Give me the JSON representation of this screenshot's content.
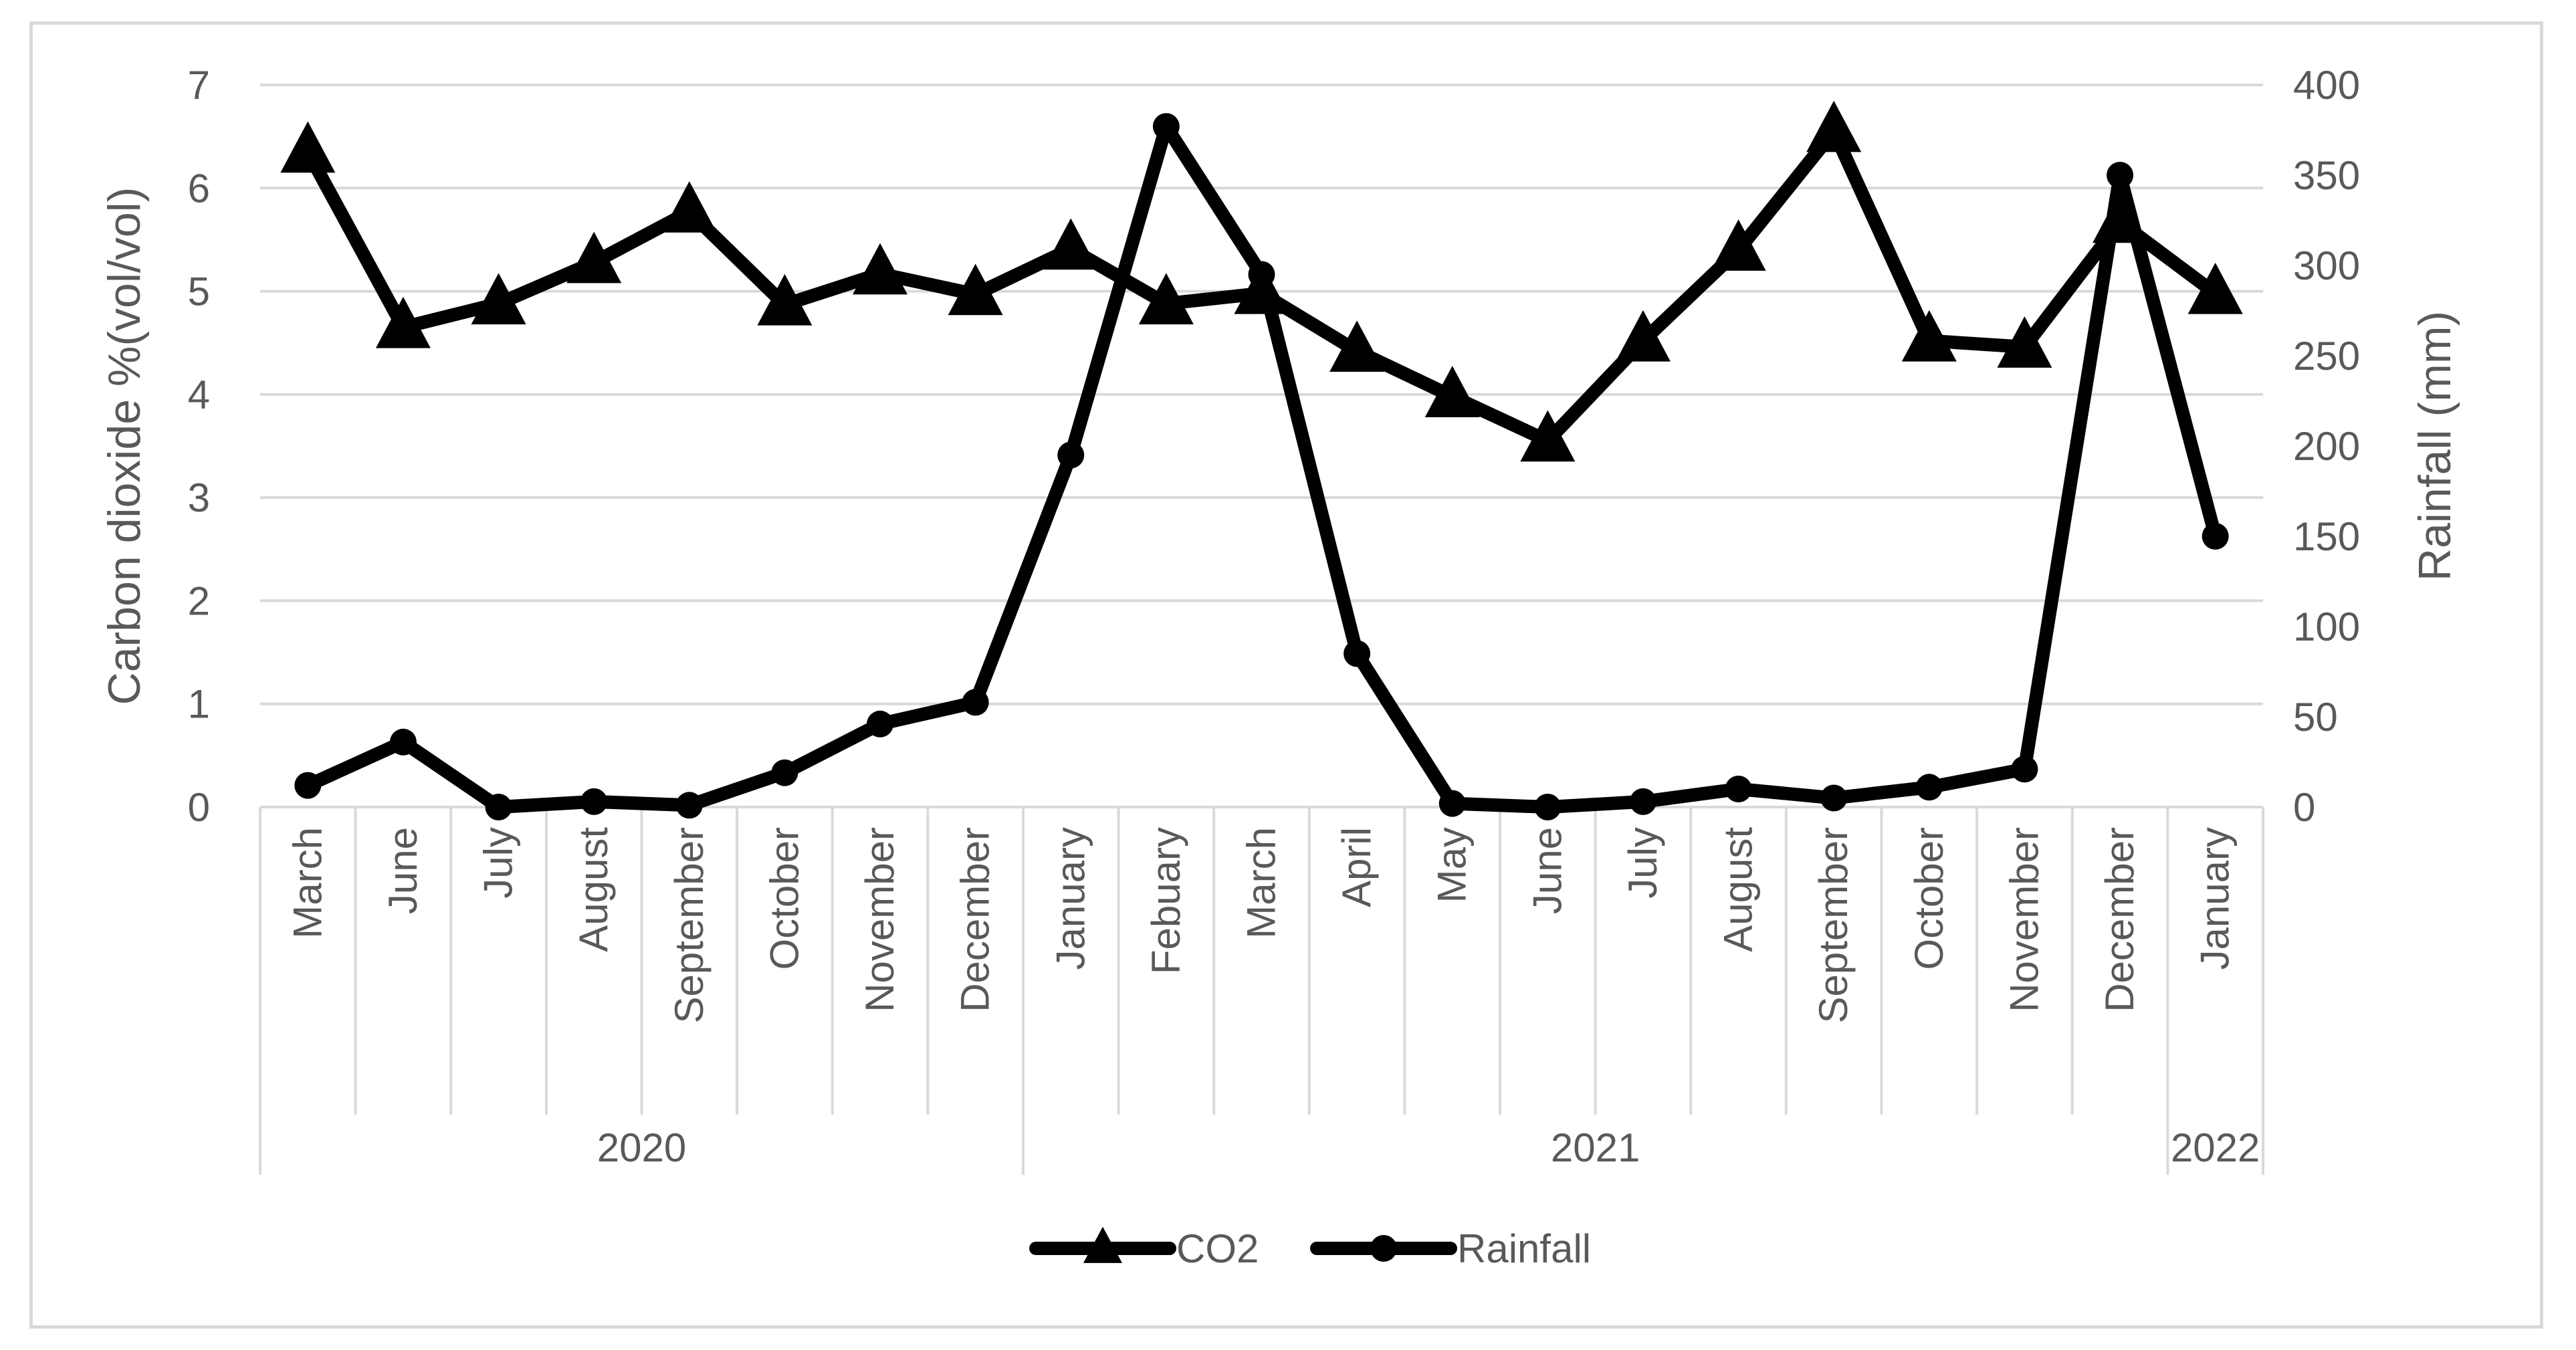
{
  "chart_data": {
    "type": "line",
    "categories": [
      {
        "month": "March",
        "year": "2020"
      },
      {
        "month": "June",
        "year": "2020"
      },
      {
        "month": "July",
        "year": "2020"
      },
      {
        "month": "August",
        "year": "2020"
      },
      {
        "month": "September",
        "year": "2020"
      },
      {
        "month": "October",
        "year": "2020"
      },
      {
        "month": "November",
        "year": "2020"
      },
      {
        "month": "December",
        "year": "2020"
      },
      {
        "month": "January",
        "year": "2021"
      },
      {
        "month": "Febuary",
        "year": "2021"
      },
      {
        "month": "March",
        "year": "2021"
      },
      {
        "month": "April",
        "year": "2021"
      },
      {
        "month": "May",
        "year": "2021"
      },
      {
        "month": "June",
        "year": "2021"
      },
      {
        "month": "July",
        "year": "2021"
      },
      {
        "month": "August",
        "year": "2021"
      },
      {
        "month": "September",
        "year": "2021"
      },
      {
        "month": "October",
        "year": "2021"
      },
      {
        "month": "November",
        "year": "2021"
      },
      {
        "month": "December",
        "year": "2021"
      },
      {
        "month": "January",
        "year": "2022"
      }
    ],
    "year_groups": [
      "2020",
      "2021",
      "2022"
    ],
    "series": [
      {
        "name": "CO2",
        "axis": "left",
        "marker": "triangle",
        "color": "#000000",
        "values": [
          6.35,
          4.65,
          4.88,
          5.28,
          5.77,
          4.87,
          5.17,
          4.97,
          5.41,
          4.88,
          4.98,
          4.42,
          3.98,
          3.55,
          4.52,
          5.4,
          6.55,
          4.52,
          4.46,
          5.67,
          4.98
        ]
      },
      {
        "name": "Rainfall",
        "axis": "right",
        "marker": "circle",
        "color": "#000000",
        "values": [
          12,
          36,
          0,
          3,
          1,
          19,
          46,
          58,
          195,
          377,
          295,
          85,
          2,
          0,
          3,
          10,
          5,
          11,
          21,
          350,
          150
        ]
      }
    ],
    "ylabel": "Carbon dioxide %(vol/vol)",
    "y2label": "Rainfall (mm)",
    "ylim": [
      0,
      7
    ],
    "y2lim": [
      0,
      400
    ],
    "yticks": [
      "0",
      "1",
      "2",
      "3",
      "4",
      "5",
      "6",
      "7"
    ],
    "y2ticks": [
      "0",
      "50",
      "100",
      "150",
      "200",
      "250",
      "300",
      "350",
      "400"
    ],
    "grid": true,
    "legend": "bottom",
    "gridline_color": "#d9d9d9",
    "text_color": "#595959"
  }
}
